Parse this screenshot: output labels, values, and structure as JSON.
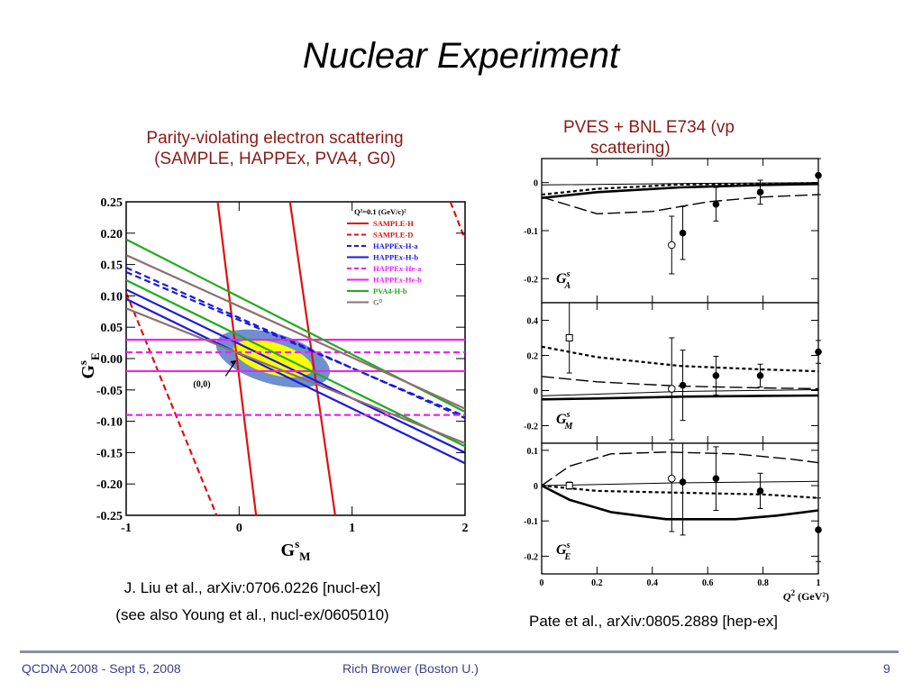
{
  "slide": {
    "title": "Nuclear Experiment",
    "left_caption_line1": "Parity-violating electron scattering",
    "left_caption_line2": "(SAMPLE, HAPPEx, PVA4, G0)",
    "right_caption_line1": "PVES + BNL E734 (vp",
    "right_caption_line2": "scattering)",
    "left_ref_line1": "J. Liu et al., arXiv:0706.0226 [nucl-ex]",
    "left_ref_line2": "(see also Young et al., nucl-ex/0605010)",
    "right_ref": "Pate et al., arXiv:0805.2889 [hep-ex]",
    "footer_left": "QCDNA 2008 -  Sept 5, 2008",
    "footer_center": "Rich Brower (Boston U.)",
    "page_number": "9"
  },
  "chart_data": [
    {
      "type": "line",
      "xlabel": "G",
      "xlabel_sup": "s",
      "xlabel_sub": "M",
      "ylabel": "G",
      "ylabel_sup": "s",
      "ylabel_sub": "E",
      "xlim": [
        -1,
        2
      ],
      "ylim": [
        -0.25,
        0.25
      ],
      "x_ticks": [
        "-1",
        "0",
        "1",
        "2"
      ],
      "y_ticks": [
        "-0.25",
        "-0.20",
        "-0.15",
        "-0.10",
        "-0.05",
        "0.00",
        "0.05",
        "0.10",
        "0.15",
        "0.20",
        "0.25"
      ],
      "legend_position": "top-right",
      "legend_header": "Q²=0.1 (GeV/c)²",
      "origin_label": "(0,0)",
      "colors": {
        "sample": "#e01010",
        "happex_h": "#1a1adc",
        "happex_he": "#ee22ee",
        "pva4": "#22aa22",
        "g0": "#8c7070",
        "ellipse_outer": "#6f8fce",
        "ellipse_inner": "#ffff00"
      },
      "series": [
        {
          "name": "SAMPLE-H",
          "color": "#e01010",
          "dash": "solid",
          "lines": [
            [
              [
                -0.19,
                0.25
              ],
              [
                0.15,
                -0.25
              ]
            ],
            [
              [
                0.45,
                0.25
              ],
              [
                0.85,
                -0.25
              ]
            ]
          ]
        },
        {
          "name": "SAMPLE-D",
          "color": "#e01010",
          "dash": "dashed",
          "lines": [
            [
              [
                -1.0,
                0.105
              ],
              [
                -0.2,
                -0.25
              ]
            ],
            [
              [
                1.87,
                0.25
              ],
              [
                2.0,
                0.19
              ]
            ]
          ]
        },
        {
          "name": "HAPPEx-H-a",
          "color": "#1a1adc",
          "dash": "dashed",
          "lines": [
            [
              [
                -1.0,
                0.145
              ],
              [
                2.0,
                -0.095
              ]
            ],
            [
              [
                -1.0,
                0.138
              ],
              [
                2.0,
                -0.092
              ]
            ]
          ]
        },
        {
          "name": "HAPPEx-H-b",
          "color": "#1a1adc",
          "dash": "solid",
          "lines": [
            [
              [
                -1.0,
                0.11
              ],
              [
                2.0,
                -0.15
              ]
            ],
            [
              [
                -1.0,
                0.095
              ],
              [
                2.0,
                -0.167
              ]
            ]
          ]
        },
        {
          "name": "HAPPEx-He-a",
          "color": "#ee22ee",
          "dash": "dashed",
          "lines": [
            [
              [
                -1.0,
                0.01
              ],
              [
                2.0,
                0.01
              ]
            ],
            [
              [
                -1.0,
                -0.09
              ],
              [
                2.0,
                -0.09
              ]
            ]
          ]
        },
        {
          "name": "HAPPEx-He-b",
          "color": "#ee22ee",
          "dash": "solid",
          "lines": [
            [
              [
                -1.0,
                0.03
              ],
              [
                2.0,
                0.03
              ]
            ],
            [
              [
                -1.0,
                -0.02
              ],
              [
                2.0,
                -0.02
              ]
            ]
          ]
        },
        {
          "name": "PVA4-H-b",
          "color": "#22aa22",
          "dash": "solid",
          "lines": [
            [
              [
                -1.0,
                0.19
              ],
              [
                2.0,
                -0.085
              ]
            ],
            [
              [
                -1.0,
                0.125
              ],
              [
                2.0,
                -0.14
              ]
            ]
          ]
        },
        {
          "name": "G⁰",
          "color": "#8c7070",
          "dash": "solid",
          "lines": [
            [
              [
                -1.0,
                0.165
              ],
              [
                2.0,
                -0.08
              ]
            ],
            [
              [
                -1.0,
                0.08
              ],
              [
                2.0,
                -0.135
              ]
            ]
          ]
        }
      ],
      "ellipse_outer": {
        "cx": 0.3,
        "cy": 0.0,
        "rx": 0.52,
        "ry": 0.04,
        "angle_deg": 16
      },
      "ellipse_inner": {
        "cx": 0.3,
        "cy": 0.0,
        "rx": 0.36,
        "ry": 0.025,
        "angle_deg": 16
      }
    },
    {
      "type": "scatter",
      "xlabel": "Q",
      "xlabel_sup": "2",
      "xlabel_unit": " (GeV²)",
      "xlim": [
        0,
        1
      ],
      "x_ticks": [
        "0",
        "0.2",
        "0.4",
        "0.6",
        "0.8",
        "1"
      ],
      "panels": [
        {
          "label": "G",
          "label_sup": "s",
          "label_sub": "A",
          "ylim": [
            -0.25,
            0.05
          ],
          "y_ticks": [
            "0",
            "-0.1",
            "-0.2"
          ],
          "points": [
            {
              "x": 0.47,
              "y": -0.13,
              "err": 0.06,
              "marker": "open-circle"
            },
            {
              "x": 0.51,
              "y": -0.105,
              "err": 0.055,
              "marker": "filled-circle"
            },
            {
              "x": 0.63,
              "y": -0.045,
              "err": 0.035,
              "marker": "filled-circle"
            },
            {
              "x": 0.79,
              "y": -0.02,
              "err": 0.025,
              "marker": "filled-circle"
            },
            {
              "x": 1.0,
              "y": 0.015,
              "err": 0.04,
              "marker": "filled-circle"
            }
          ],
          "curves": [
            {
              "style": "thin",
              "points": [
                [
                  0,
                  -0.005
                ],
                [
                  0.5,
                  -0.002
                ],
                [
                  1.0,
                  0.0
                ]
              ]
            },
            {
              "style": "thick",
              "points": [
                [
                  0,
                  -0.032
                ],
                [
                  0.2,
                  -0.02
                ],
                [
                  0.5,
                  -0.01
                ],
                [
                  0.8,
                  -0.005
                ],
                [
                  1.0,
                  -0.003
                ]
              ]
            },
            {
              "style": "dotted",
              "points": [
                [
                  0,
                  -0.025
                ],
                [
                  0.2,
                  -0.013
                ],
                [
                  0.5,
                  -0.004
                ],
                [
                  1.0,
                  -0.001
                ]
              ]
            },
            {
              "style": "longdash",
              "points": [
                [
                  0,
                  -0.03
                ],
                [
                  0.2,
                  -0.065
                ],
                [
                  0.4,
                  -0.06
                ],
                [
                  0.6,
                  -0.04
                ],
                [
                  0.8,
                  -0.03
                ],
                [
                  1.0,
                  -0.025
                ]
              ]
            }
          ]
        },
        {
          "label": "G",
          "label_sup": "s",
          "label_sub": "M",
          "ylim": [
            -0.3,
            0.5
          ],
          "y_ticks": [
            "0.4",
            "0.2",
            "0",
            "-0.2"
          ],
          "points": [
            {
              "x": 0.1,
              "y": 0.3,
              "err": 0.2,
              "marker": "open-square"
            },
            {
              "x": 0.47,
              "y": 0.01,
              "err": 0.29,
              "marker": "open-circle"
            },
            {
              "x": 0.51,
              "y": 0.03,
              "err": 0.2,
              "marker": "filled-circle"
            },
            {
              "x": 0.63,
              "y": 0.085,
              "err": 0.11,
              "marker": "filled-circle"
            },
            {
              "x": 0.79,
              "y": 0.085,
              "err": 0.065,
              "marker": "filled-circle"
            },
            {
              "x": 1.0,
              "y": 0.22,
              "err": 0.065,
              "marker": "filled-circle"
            }
          ],
          "curves": [
            {
              "style": "thin",
              "points": [
                [
                  0,
                  -0.03
                ],
                [
                  0.5,
                  -0.005
                ],
                [
                  1.0,
                  0.005
                ]
              ]
            },
            {
              "style": "thick",
              "points": [
                [
                  0,
                  -0.05
                ],
                [
                  0.2,
                  -0.045
                ],
                [
                  0.5,
                  -0.035
                ],
                [
                  0.8,
                  -0.03
                ],
                [
                  1.0,
                  -0.028
                ]
              ]
            },
            {
              "style": "dotted",
              "points": [
                [
                  0,
                  0.25
                ],
                [
                  0.2,
                  0.19
                ],
                [
                  0.5,
                  0.14
                ],
                [
                  0.8,
                  0.12
                ],
                [
                  1.0,
                  0.11
                ]
              ]
            },
            {
              "style": "longdash",
              "points": [
                [
                  0,
                  0.08
                ],
                [
                  0.2,
                  0.05
                ],
                [
                  0.5,
                  0.025
                ],
                [
                  0.8,
                  0.015
                ],
                [
                  1.0,
                  0.01
                ]
              ]
            }
          ]
        },
        {
          "label": "G",
          "label_sup": "s",
          "label_sub": "E",
          "ylim": [
            -0.25,
            0.12
          ],
          "y_ticks": [
            "0.1",
            "0",
            "-0.1",
            "-0.2"
          ],
          "points": [
            {
              "x": 0.1,
              "y": 0.0,
              "err": 0.01,
              "marker": "open-square"
            },
            {
              "x": 0.47,
              "y": 0.02,
              "err": 0.15,
              "marker": "open-circle"
            },
            {
              "x": 0.51,
              "y": 0.01,
              "err": 0.15,
              "marker": "filled-circle"
            },
            {
              "x": 0.63,
              "y": 0.02,
              "err": 0.09,
              "marker": "filled-circle"
            },
            {
              "x": 0.79,
              "y": -0.015,
              "err": 0.05,
              "marker": "filled-circle"
            },
            {
              "x": 1.0,
              "y": -0.125,
              "err": 0.09,
              "marker": "filled-circle"
            }
          ],
          "curves": [
            {
              "style": "thin",
              "points": [
                [
                  0,
                  0.0
                ],
                [
                  0.5,
                  0.008
                ],
                [
                  1.0,
                  0.012
                ]
              ]
            },
            {
              "style": "thick",
              "points": [
                [
                  0,
                  0.0
                ],
                [
                  0.1,
                  -0.04
                ],
                [
                  0.25,
                  -0.075
                ],
                [
                  0.45,
                  -0.095
                ],
                [
                  0.7,
                  -0.095
                ],
                [
                  0.85,
                  -0.085
                ],
                [
                  1.0,
                  -0.07
                ]
              ]
            },
            {
              "style": "dotted",
              "points": [
                [
                  0,
                  0.0
                ],
                [
                  0.2,
                  -0.015
                ],
                [
                  0.5,
                  -0.02
                ],
                [
                  0.8,
                  -0.025
                ],
                [
                  1.0,
                  -0.035
                ]
              ]
            },
            {
              "style": "longdash",
              "points": [
                [
                  0,
                  0.0
                ],
                [
                  0.1,
                  0.055
                ],
                [
                  0.25,
                  0.09
                ],
                [
                  0.45,
                  0.095
                ],
                [
                  0.7,
                  0.09
                ],
                [
                  0.9,
                  0.075
                ],
                [
                  1.0,
                  0.065
                ]
              ]
            }
          ]
        }
      ]
    }
  ]
}
